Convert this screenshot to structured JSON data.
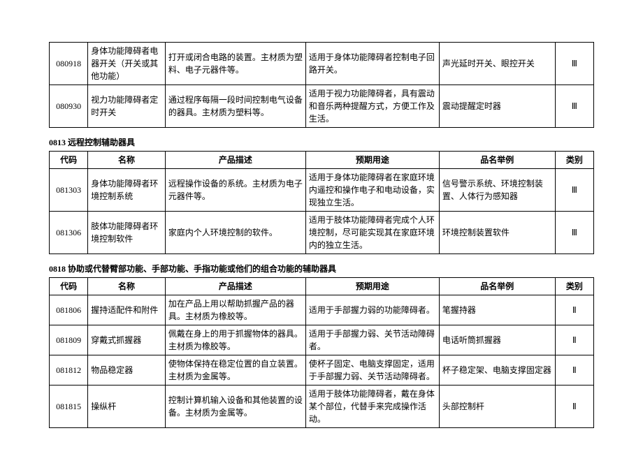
{
  "tables": [
    {
      "title": "",
      "show_header": false,
      "rows": [
        {
          "code": "080918",
          "name": "身体功能障碍者电器开关（开关或其他功能）",
          "desc": "打开或闭合电路的装置。主材质为塑料、电子元器件等。",
          "use": "适用于身体功能障碍者控制电子回路开关。",
          "example": "声光延时开关、眼控开关",
          "cat": "Ⅲ"
        },
        {
          "code": "080930",
          "name": "视力功能障碍者定时开关",
          "desc": "通过程序每隔一段时间控制电气设备的器具。主材质为塑料等。",
          "use": "适用于视力功能障碍者，具有震动和音乐两种提醒方式，方便工作及生活。",
          "example": "震动提醒定时器",
          "cat": "Ⅲ"
        }
      ]
    },
    {
      "title": "0813 远程控制辅助器具",
      "show_header": true,
      "rows": [
        {
          "code": "081303",
          "name": "身体功能障碍者环境控制系统",
          "desc": "远程操作设备的系统。主材质为电子元器件等。",
          "use": "适用于身体功能障碍者在家庭环境内遥控和操作电子和电动设备，实现独立生活。",
          "example": "信号警示系统、环境控制装置、人体行为感知器",
          "cat": "Ⅲ"
        },
        {
          "code": "081306",
          "name": "肢体功能障碍者环境控制软件",
          "desc": "家庭内个人环境控制的软件。",
          "use": "适用于肢体功能障碍者完成个人环境控制，尽可能实现其在家庭环境内的独立生活。",
          "example": "环境控制装置软件",
          "cat": "Ⅲ"
        }
      ]
    },
    {
      "title": "0818 协助或代替臂部功能、手部功能、手指功能或他们的组合功能的辅助器具",
      "show_header": true,
      "rows": [
        {
          "code": "081806",
          "name": "握持适配件和附件",
          "desc": "加在产品上用以帮助抓握产品的器具。主材质为橡胶等。",
          "use": "适用于手部握力弱的功能障碍者。",
          "example": "笔握持器",
          "cat": "Ⅱ"
        },
        {
          "code": "081809",
          "name": "穿戴式抓握器",
          "desc": "佩戴在身上的用于抓握物体的器具。主材质为橡胶等。",
          "use": "适用于手部握力弱、关节活动障碍者。",
          "example": "电话听筒抓握器",
          "cat": "Ⅱ"
        },
        {
          "code": "081812",
          "name": "物品稳定器",
          "desc": "使物体保持在稳定位置的自立装置。主材质为金属等。",
          "use": "使杯子固定、电脑支撑固定，适用于手部握力弱、关节活动障碍者。",
          "example": "杯子稳定架、电脑支撑固定器",
          "cat": "Ⅱ"
        },
        {
          "code": "081815",
          "name": "操纵杆",
          "desc": "控制计算机输入设备和其他装置的设备。主材质为金属等。",
          "use": "适用于肢体功能障碍者，戴在身体某个部位，代替手来完成操作活动。",
          "example": "头部控制杆",
          "cat": "Ⅱ"
        }
      ]
    }
  ],
  "headers": {
    "code": "代码",
    "name": "名称",
    "desc": "产品描述",
    "use": "预期用途",
    "example": "品名举例",
    "cat": "类别"
  }
}
